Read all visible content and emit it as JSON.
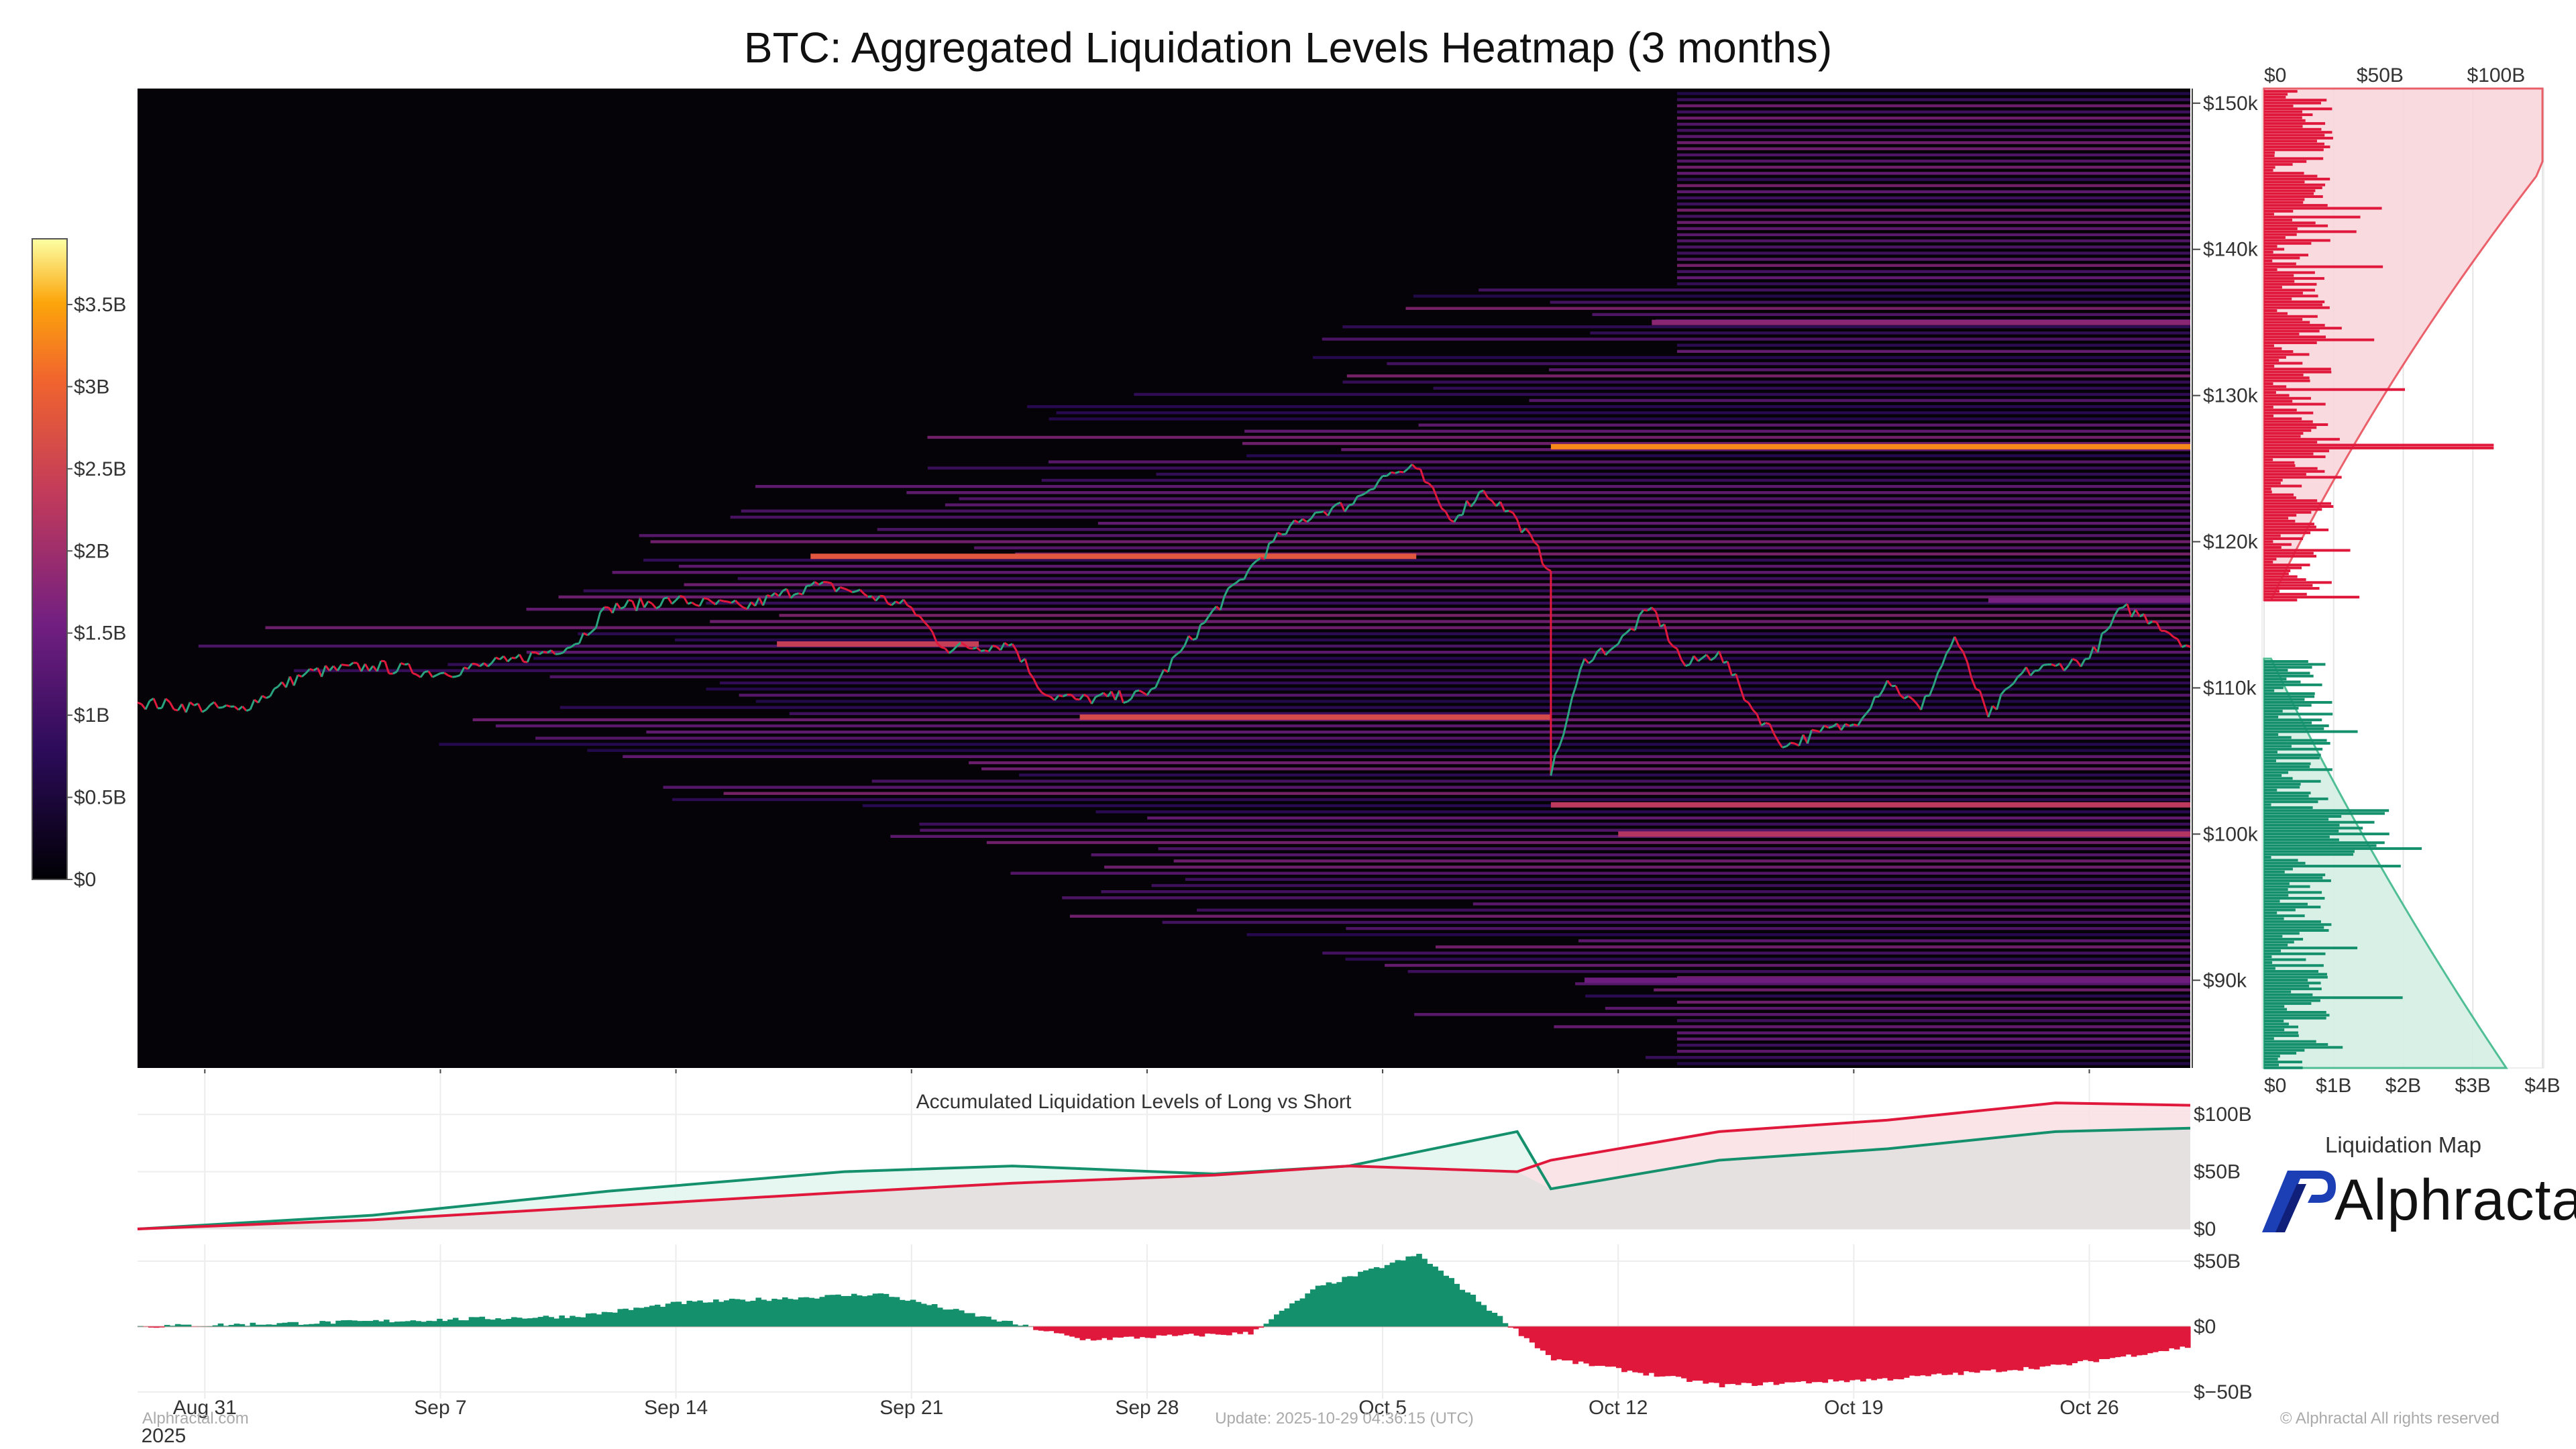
{
  "title": "BTC: Aggregated Liquidation Levels Heatmap (3 months)",
  "colors": {
    "long": "#14906c",
    "short": "#e0183c",
    "heat_bg": "#050308"
  },
  "colorbar": {
    "ticks": [
      "$0",
      "$0.5B",
      "$1B",
      "$1.5B",
      "$2B",
      "$2.5B",
      "$3B",
      "$3.5B"
    ]
  },
  "x_axis": {
    "ticks": [
      "Aug 31",
      "Sep 7",
      "Sep 14",
      "Sep 21",
      "Sep 28",
      "Oct 5",
      "Oct 12",
      "Oct 19",
      "Oct 26"
    ],
    "year": "2025"
  },
  "price_axis": {
    "ticks": [
      "$90k",
      "$100k",
      "$110k",
      "$120k",
      "$130k",
      "$140k",
      "$150k"
    ]
  },
  "side_profile": {
    "top_ticks": [
      "$0",
      "$50B",
      "$100B"
    ],
    "bottom_ticks": [
      "$0",
      "$1B",
      "$2B",
      "$3B",
      "$4B"
    ]
  },
  "panel2": {
    "title": "Accumulated Liquidation Levels of Long vs Short",
    "y_ticks": [
      "$0",
      "$50B",
      "$100B"
    ]
  },
  "panel3": {
    "y_ticks": [
      "$−50B",
      "$0",
      "$50B"
    ]
  },
  "footer": {
    "source": "Alphractal.com",
    "update": "Update: 2025-10-29 04:36:15 (UTC)",
    "copyright": "© Alphractal All rights reserved"
  },
  "brand": {
    "subtitle": "Liquidation Map",
    "name": "Alphractal"
  },
  "chart_data": [
    {
      "type": "heatmap",
      "title": "BTC: Aggregated Liquidation Levels Heatmap (3 months)",
      "x_range": [
        "2025-08-29",
        "2025-10-29"
      ],
      "y_range_usd": [
        84000,
        151000
      ],
      "colorbar_range_usd_b": [
        0,
        3.9
      ],
      "high_liquidation_bands": [
        {
          "price": 126500,
          "start": "2025-10-10",
          "level_b": 3.3
        },
        {
          "price": 119000,
          "start": "2025-09-18",
          "end": "2025-10-06",
          "level_b": 2.8
        },
        {
          "price": 102000,
          "start": "2025-10-10",
          "level_b": 2.3
        },
        {
          "price": 100000,
          "start": "2025-10-12",
          "level_b": 2.2
        },
        {
          "price": 108000,
          "start": "2025-09-26",
          "end": "2025-10-10",
          "level_b": 2.6
        },
        {
          "price": 113000,
          "start": "2025-09-17",
          "end": "2025-09-23",
          "level_b": 2.4
        },
        {
          "price": 135000,
          "start": "2025-10-13",
          "level_b": 1.8
        },
        {
          "price": 116000,
          "start": "2025-10-23",
          "level_b": 1.6
        },
        {
          "price": 90000,
          "start": "2025-10-11",
          "level_b": 1.5
        }
      ],
      "price_path": [
        {
          "x": "2025-08-29",
          "y": 109000
        },
        {
          "x": "2025-09-01",
          "y": 108500
        },
        {
          "x": "2025-09-03",
          "y": 111000
        },
        {
          "x": "2025-09-05",
          "y": 111500
        },
        {
          "x": "2025-09-07",
          "y": 111000
        },
        {
          "x": "2025-09-09",
          "y": 111800
        },
        {
          "x": "2025-09-11",
          "y": 113000
        },
        {
          "x": "2025-09-12",
          "y": 115500
        },
        {
          "x": "2025-09-14",
          "y": 116000
        },
        {
          "x": "2025-09-16",
          "y": 115500
        },
        {
          "x": "2025-09-18",
          "y": 117000
        },
        {
          "x": "2025-09-19",
          "y": 116800
        },
        {
          "x": "2025-09-21",
          "y": 115500
        },
        {
          "x": "2025-09-22",
          "y": 112700
        },
        {
          "x": "2025-09-24",
          "y": 113000
        },
        {
          "x": "2025-09-25",
          "y": 109500
        },
        {
          "x": "2025-09-26",
          "y": 109200
        },
        {
          "x": "2025-09-28",
          "y": 109500
        },
        {
          "x": "2025-09-29",
          "y": 112500
        },
        {
          "x": "2025-10-01",
          "y": 118000
        },
        {
          "x": "2025-10-02",
          "y": 120500
        },
        {
          "x": "2025-10-03",
          "y": 122000
        },
        {
          "x": "2025-10-04",
          "y": 122500
        },
        {
          "x": "2025-10-05",
          "y": 124500
        },
        {
          "x": "2025-10-06",
          "y": 125000
        },
        {
          "x": "2025-10-07",
          "y": 121500
        },
        {
          "x": "2025-10-08",
          "y": 123500
        },
        {
          "x": "2025-10-09",
          "y": 121500
        },
        {
          "x": "2025-10-10",
          "y": 118000
        },
        {
          "x": "2025-10-10",
          "y": 104000
        },
        {
          "x": "2025-10-11",
          "y": 112000
        },
        {
          "x": "2025-10-12",
          "y": 113000
        },
        {
          "x": "2025-10-13",
          "y": 115500
        },
        {
          "x": "2025-10-14",
          "y": 111500
        },
        {
          "x": "2025-10-15",
          "y": 112500
        },
        {
          "x": "2025-10-16",
          "y": 108500
        },
        {
          "x": "2025-10-17",
          "y": 106000
        },
        {
          "x": "2025-10-18",
          "y": 107000
        },
        {
          "x": "2025-10-19",
          "y": 107500
        },
        {
          "x": "2025-10-20",
          "y": 110500
        },
        {
          "x": "2025-10-21",
          "y": 108500
        },
        {
          "x": "2025-10-22",
          "y": 113500
        },
        {
          "x": "2025-10-23",
          "y": 108000
        },
        {
          "x": "2025-10-24",
          "y": 111000
        },
        {
          "x": "2025-10-25",
          "y": 111500
        },
        {
          "x": "2025-10-26",
          "y": 112000
        },
        {
          "x": "2025-10-27",
          "y": 115500
        },
        {
          "x": "2025-10-28",
          "y": 114500
        },
        {
          "x": "2025-10-29",
          "y": 112800
        }
      ]
    },
    {
      "type": "bar",
      "orientation": "horizontal",
      "subtitle": "liquidation profile by price",
      "bar_axis_range_usd_b": [
        0,
        4
      ],
      "cumulative_axis_range_usd_b": [
        0,
        120
      ],
      "series": [
        {
          "side": "short",
          "price_range": [
            116000,
            151000
          ]
        },
        {
          "side": "long",
          "price_range": [
            84000,
            112000
          ]
        }
      ]
    },
    {
      "type": "area",
      "title": "Accumulated Liquidation Levels of Long vs Short",
      "ylim_usd_b": [
        0,
        130
      ],
      "x": [
        "2025-08-29",
        "2025-09-05",
        "2025-09-12",
        "2025-09-19",
        "2025-09-24",
        "2025-09-30",
        "2025-10-04",
        "2025-10-09",
        "2025-10-10",
        "2025-10-15",
        "2025-10-20",
        "2025-10-25",
        "2025-10-29"
      ],
      "series": [
        {
          "side": "long",
          "values": [
            0,
            12,
            33,
            50,
            55,
            48,
            55,
            85,
            35,
            60,
            70,
            85,
            88
          ]
        },
        {
          "side": "short",
          "values": [
            0,
            8,
            20,
            32,
            40,
            47,
            55,
            50,
            60,
            85,
            95,
            110,
            108
          ]
        }
      ]
    },
    {
      "type": "area",
      "ylim_usd_b": [
        -50,
        50
      ],
      "x": [
        "2025-08-29",
        "2025-09-05",
        "2025-09-11",
        "2025-09-14",
        "2025-09-20",
        "2025-09-24",
        "2025-09-26",
        "2025-10-01",
        "2025-10-03",
        "2025-10-06",
        "2025-10-10",
        "2025-10-15",
        "2025-10-20",
        "2025-10-25",
        "2025-10-29"
      ],
      "series": [
        {
          "side": "long_minus_short",
          "values": [
            0,
            4,
            8,
            18,
            25,
            2,
            -10,
            -5,
            30,
            55,
            -25,
            -45,
            -40,
            -30,
            -15
          ]
        }
      ]
    }
  ]
}
